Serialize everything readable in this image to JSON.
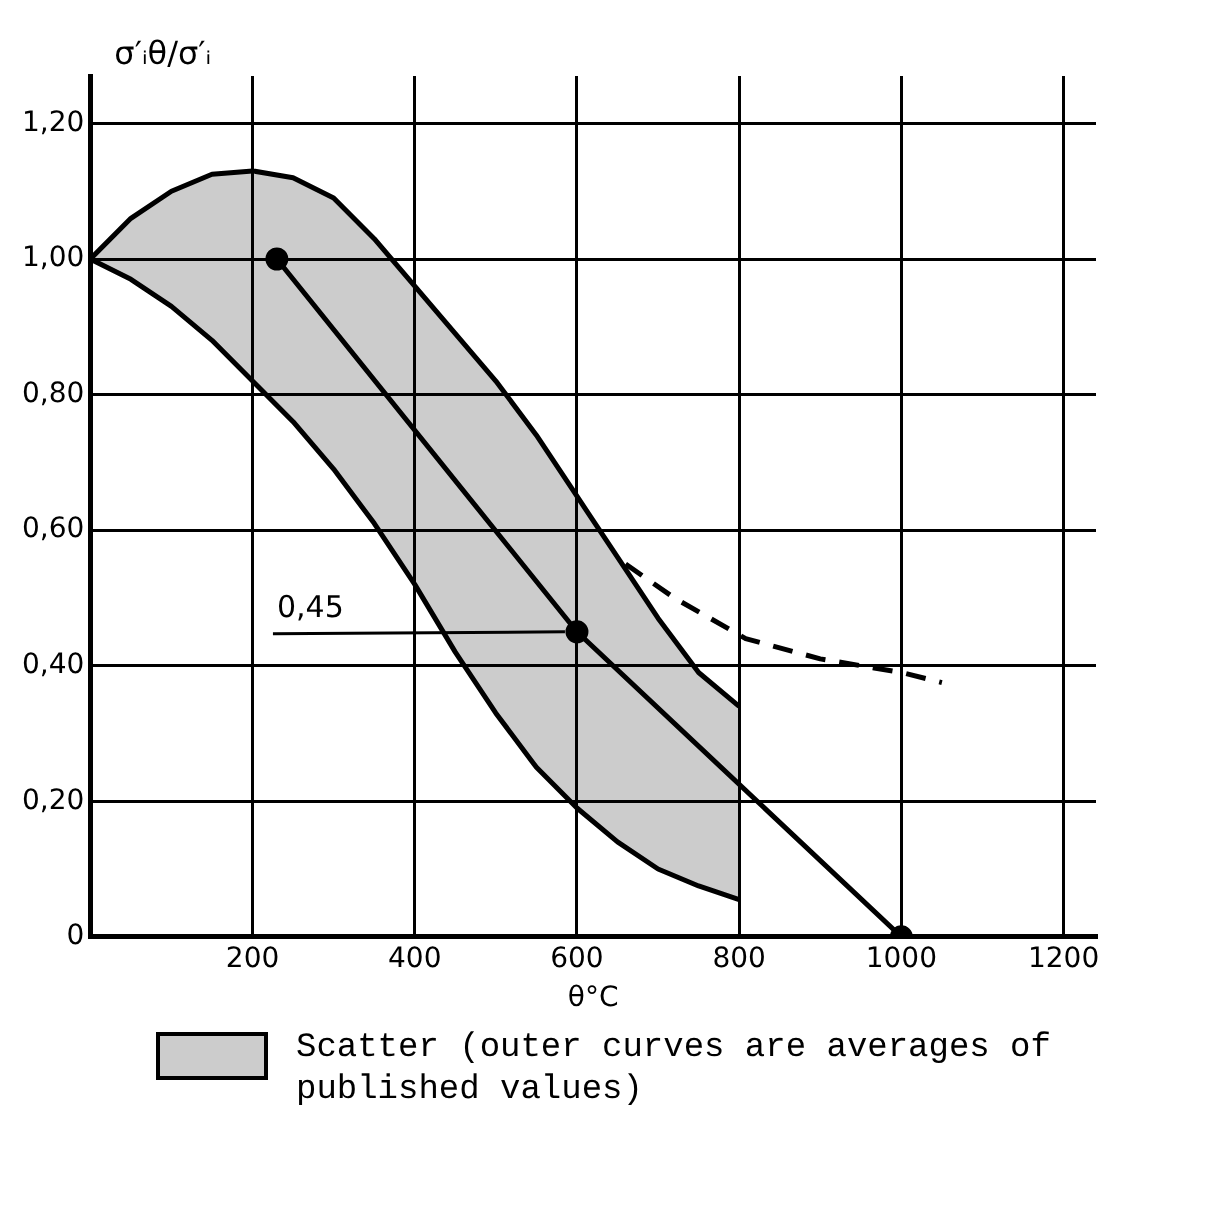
{
  "chart_data": {
    "type": "line",
    "xlabel": "θ°C",
    "ylabel": "σ′ᵢθ/σ′ᵢ",
    "xlim": [
      0,
      1240
    ],
    "ylim": [
      0,
      1.27
    ],
    "xticks": [
      200,
      400,
      600,
      800,
      1000,
      1200
    ],
    "yticks": [
      {
        "value": 0,
        "label": "0"
      },
      {
        "value": 0.2,
        "label": "0,20"
      },
      {
        "value": 0.4,
        "label": "0,40"
      },
      {
        "value": 0.6,
        "label": "0,60"
      },
      {
        "value": 0.8,
        "label": "0,80"
      },
      {
        "value": 1.0,
        "label": "1,00"
      },
      {
        "value": 1.2,
        "label": "1,20"
      }
    ],
    "grid": true,
    "legend": "bottom",
    "series": [
      {
        "type": "line",
        "color": "#000000",
        "marker": "none",
        "x": [
          0,
          50,
          100,
          150,
          200,
          250,
          300,
          350,
          400,
          450,
          500,
          550,
          600,
          650,
          700,
          750,
          800
        ],
        "values": [
          1.0,
          0.97,
          0.93,
          0.88,
          0.82,
          0.76,
          0.69,
          0.61,
          0.52,
          0.42,
          0.33,
          0.25,
          0.19,
          0.14,
          0.1,
          0.075,
          0.055
        ]
      },
      {
        "type": "area",
        "name": "Scatter (outer curves are averages of published values)",
        "color": "#000000",
        "marker": "none",
        "x": [
          0,
          50,
          100,
          150,
          200,
          250,
          300,
          350,
          400,
          450,
          500,
          550,
          600,
          650,
          700,
          750,
          800
        ],
        "values": [
          1.0,
          1.06,
          1.1,
          1.125,
          1.13,
          1.12,
          1.09,
          1.03,
          0.96,
          0.89,
          0.82,
          0.74,
          0.65,
          0.56,
          0.47,
          0.39,
          0.34
        ]
      },
      {
        "type": "line",
        "color": "#000000",
        "marker": "circle",
        "x": [
          230,
          600,
          1000
        ],
        "values": [
          1.0,
          0.45,
          0.0
        ]
      },
      {
        "type": "line",
        "color": "#000000",
        "marker": "none",
        "line_style": "dashed",
        "x": [
          660,
          720,
          808,
          900,
          1000,
          1050
        ],
        "values": [
          0.55,
          0.5,
          0.44,
          0.41,
          0.39,
          0.375
        ]
      }
    ],
    "annotations": [
      {
        "text": "0,45",
        "x": 600,
        "y": 0.45
      }
    ]
  }
}
